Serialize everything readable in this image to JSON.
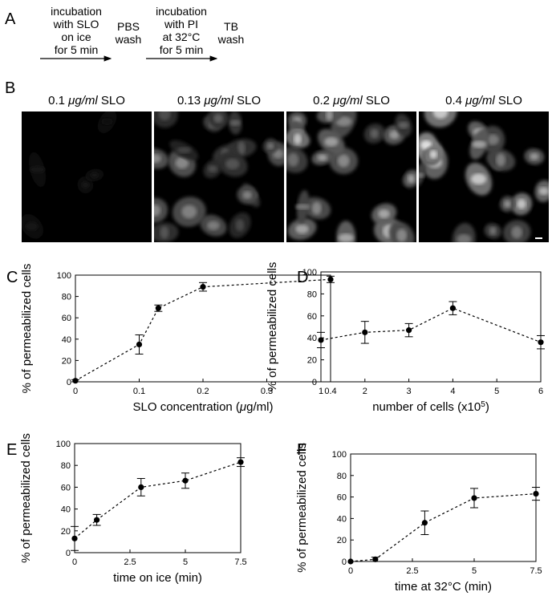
{
  "panel_labels": [
    "A",
    "B",
    "C",
    "D",
    "E",
    "F"
  ],
  "protocol": {
    "step1": [
      "incubation",
      "with SLO",
      "on ice",
      "for 5 min"
    ],
    "step2": [
      "PBS",
      "wash"
    ],
    "step3": [
      "incubation",
      "with PI",
      "at 32°C",
      "for 5 min"
    ],
    "step4": [
      "TB",
      "wash"
    ]
  },
  "micrographs": [
    {
      "prefix": "0.1 ",
      "unit": "μg/ml",
      "suffix": " SLO",
      "brightness": 0.03
    },
    {
      "prefix": "0.13 ",
      "unit": "μg/ml",
      "suffix": " SLO",
      "brightness": 0.55
    },
    {
      "prefix": "0.2 ",
      "unit": "μg/ml",
      "suffix": " SLO",
      "brightness": 0.8
    },
    {
      "prefix": "0.4 ",
      "unit": "μg/ml",
      "suffix": " SLO",
      "brightness": 0.95
    }
  ],
  "chart_data": [
    {
      "panel": "C",
      "type": "line",
      "xlabel_parts": [
        "SLO concentration (",
        "μ",
        "g/ml)"
      ],
      "ylabel": "% of permeabilized cells",
      "x": [
        0,
        0.1,
        0.13,
        0.2,
        0.4
      ],
      "y": [
        1,
        35,
        69,
        89,
        96
      ],
      "err": [
        1,
        9,
        3,
        4,
        3
      ],
      "xlim": [
        0,
        0.4
      ],
      "ylim": [
        0,
        100
      ],
      "xticks": [
        0,
        0.1,
        0.2,
        0.3,
        0.4
      ],
      "xtick_labels": [
        "0",
        "0.1",
        "0.2",
        "0.3",
        "0.4"
      ],
      "yticks": [
        0,
        20,
        40,
        60,
        80,
        100
      ],
      "ytick_labels": [
        "0",
        "20",
        "40",
        "60",
        "80",
        "100"
      ]
    },
    {
      "panel": "D",
      "type": "line",
      "xlabel_parts": [
        "number of cells (x10",
        "5",
        ")"
      ],
      "ylabel": "% of permeabilized cells",
      "x": [
        1,
        2,
        3,
        4,
        6
      ],
      "y": [
        38,
        45,
        47,
        67,
        36
      ],
      "err": [
        7,
        10,
        6,
        6,
        6
      ],
      "xlim": [
        1,
        6
      ],
      "ylim": [
        0,
        100
      ],
      "xticks": [
        1,
        2,
        3,
        4,
        5,
        6
      ],
      "xtick_labels": [
        "1",
        "2",
        "3",
        "4",
        "5",
        "6"
      ],
      "yticks": [
        0,
        20,
        40,
        60,
        80,
        100
      ],
      "ytick_labels": [
        "0",
        "20",
        "40",
        "60",
        "80",
        "100"
      ]
    },
    {
      "panel": "E",
      "type": "line",
      "xlabel_parts": [
        "time on ice (min)"
      ],
      "ylabel": "% of permeabilized cells",
      "x": [
        0,
        1,
        3,
        5,
        7.5
      ],
      "y": [
        13,
        30,
        60,
        66,
        83
      ],
      "err": [
        11,
        5,
        8,
        7,
        4
      ],
      "xlim": [
        0,
        7.5
      ],
      "ylim": [
        0,
        100
      ],
      "xticks": [
        0,
        2.5,
        5,
        7.5
      ],
      "xtick_labels": [
        "0",
        "2.5",
        "5",
        "7.5"
      ],
      "yticks": [
        0,
        20,
        40,
        60,
        80,
        100
      ],
      "ytick_labels": [
        "0",
        "20",
        "40",
        "60",
        "80",
        "100"
      ]
    },
    {
      "panel": "F",
      "type": "line",
      "xlabel_parts": [
        "time at 32°C (min)"
      ],
      "ylabel": "% of permeabilized cells",
      "x": [
        0,
        1,
        3,
        5,
        7.5
      ],
      "y": [
        0,
        2,
        36,
        59,
        63
      ],
      "err": [
        0,
        2,
        11,
        9,
        6
      ],
      "xlim": [
        0,
        7.5
      ],
      "ylim": [
        0,
        100
      ],
      "xticks": [
        0,
        2.5,
        5,
        7.5
      ],
      "xtick_labels": [
        "0",
        "2.5",
        "5",
        "7.5"
      ],
      "yticks": [
        0,
        20,
        40,
        60,
        80,
        100
      ],
      "ytick_labels": [
        "0",
        "20",
        "40",
        "60",
        "80",
        "100"
      ]
    }
  ]
}
